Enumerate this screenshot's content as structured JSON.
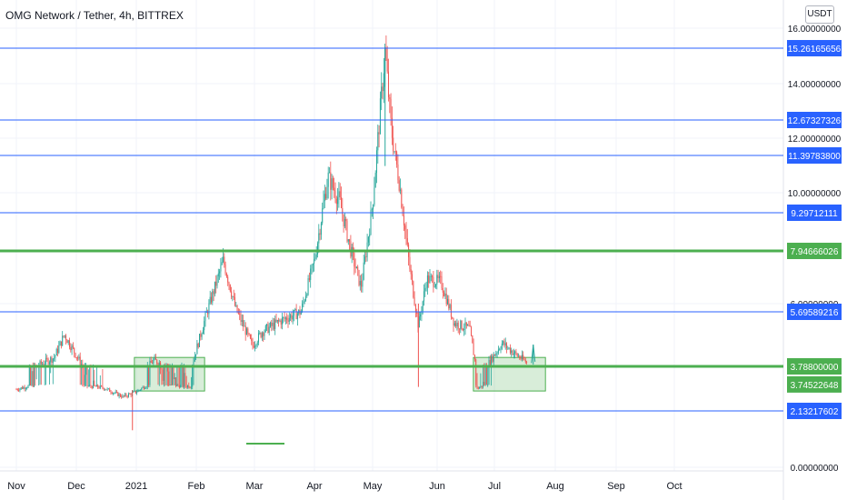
{
  "header": {
    "title": "OMG Network / Tether, 4h, BITTREX"
  },
  "currency_button": {
    "label": "USDT"
  },
  "chart_data": {
    "type": "candlestick",
    "title": "OMG Network / Tether, 4h, BITTREX",
    "ylim": [
      0,
      16
    ],
    "y_ticks": [
      "16.00000000",
      "14.00000000",
      "12.00000000",
      "10.00000000",
      "6.00000000",
      "3.78000000",
      "0.00000000"
    ],
    "x_ticks": [
      "Nov",
      "Dec",
      "2021",
      "Feb",
      "Mar",
      "Apr",
      "May",
      "Jun",
      "Jul",
      "Aug",
      "Sep",
      "Oct"
    ],
    "colors": {
      "up": "#26a69a",
      "down": "#ef5350",
      "blue_level": "#2962ff",
      "green_level": "#4caf50"
    },
    "levels": [
      {
        "value": 15.26165656,
        "label": "15.26165656",
        "color": "#2962ff"
      },
      {
        "value": 12.67327326,
        "label": "12.67327326",
        "color": "#2962ff"
      },
      {
        "value": 11.397838,
        "label": "11.39783800",
        "color": "#2962ff"
      },
      {
        "value": 9.29712111,
        "label": "9.29712111",
        "color": "#2962ff"
      },
      {
        "value": 7.94666026,
        "label": "7.94666026",
        "color": "#4caf50"
      },
      {
        "value": 5.69589216,
        "label": "5.69589216",
        "color": "#2962ff"
      },
      {
        "value": 3.788,
        "label": "3.78800000",
        "color": "#4caf50"
      },
      {
        "value": 3.74522648,
        "label": "3.74522648",
        "color": "#4caf50"
      },
      {
        "value": 2.13217602,
        "label": "2.13217602",
        "color": "#2962ff"
      }
    ],
    "zones": [
      {
        "from": "Dec 31",
        "to": "Feb 5",
        "low": 3.35,
        "high": 4.1
      },
      {
        "from": "Jun 20",
        "to": "Jul 27",
        "low": 3.35,
        "high": 4.1
      }
    ],
    "price_path": [
      {
        "date": "Nov 1",
        "price": 3.45
      },
      {
        "date": "Nov 10",
        "price": 3.75
      },
      {
        "date": "Nov 20",
        "price": 4.1
      },
      {
        "date": "Nov 25",
        "price": 4.9
      },
      {
        "date": "Dec 5",
        "price": 3.7
      },
      {
        "date": "Dec 15",
        "price": 3.55
      },
      {
        "date": "Dec 25",
        "price": 3.0
      },
      {
        "date": "Jan 1",
        "price": 3.3
      },
      {
        "date": "Jan 10",
        "price": 4.0
      },
      {
        "date": "Jan 20",
        "price": 3.7
      },
      {
        "date": "Jan 29",
        "price": 3.65
      },
      {
        "date": "Feb 5",
        "price": 5.4
      },
      {
        "date": "Feb 14",
        "price": 7.6
      },
      {
        "date": "Feb 20",
        "price": 5.8
      },
      {
        "date": "Feb 28",
        "price": 4.5
      },
      {
        "date": "Mar 5",
        "price": 5.0
      },
      {
        "date": "Mar 15",
        "price": 5.4
      },
      {
        "date": "Mar 25",
        "price": 5.7
      },
      {
        "date": "Apr 1",
        "price": 7.6
      },
      {
        "date": "Apr 8",
        "price": 10.6
      },
      {
        "date": "Apr 14",
        "price": 9.7
      },
      {
        "date": "Apr 20",
        "price": 7.9
      },
      {
        "date": "Apr 25",
        "price": 6.6
      },
      {
        "date": "May 1",
        "price": 9.6
      },
      {
        "date": "May 7",
        "price": 15.2
      },
      {
        "date": "May 10",
        "price": 12.3
      },
      {
        "date": "May 14",
        "price": 10.3
      },
      {
        "date": "May 19",
        "price": 7.2
      },
      {
        "date": "May 23",
        "price": 5.2
      },
      {
        "date": "May 27",
        "price": 6.9
      },
      {
        "date": "Jun 3",
        "price": 6.8
      },
      {
        "date": "Jun 10",
        "price": 5.3
      },
      {
        "date": "Jun 18",
        "price": 5.1
      },
      {
        "date": "Jun 22",
        "price": 3.5
      },
      {
        "date": "Jun 28",
        "price": 3.9
      },
      {
        "date": "Jul 5",
        "price": 4.6
      },
      {
        "date": "Jul 12",
        "price": 4.2
      },
      {
        "date": "Jul 18",
        "price": 3.9
      }
    ]
  }
}
